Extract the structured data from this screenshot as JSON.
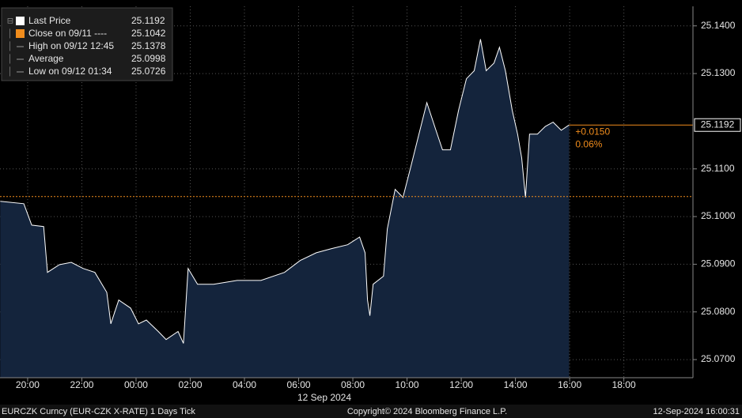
{
  "chart_data": {
    "type": "area",
    "series": [
      {
        "name": "Last Price",
        "color": "#ffffff",
        "fill": "#14243c",
        "x": [
          -5.01,
          -4.14,
          -3.85,
          -3.41,
          -3.27,
          -2.83,
          -2.39,
          -1.95,
          -1.52,
          -1.08,
          -0.93,
          -0.64,
          -0.2,
          0.09,
          0.38,
          0.82,
          1.11,
          1.55,
          1.75,
          1.92,
          2.27,
          2.86,
          3.73,
          4.61,
          5.48,
          6.06,
          6.65,
          7.23,
          7.81,
          8.25,
          8.45,
          8.54,
          8.63,
          8.75,
          9.13,
          9.27,
          9.56,
          9.85,
          10.15,
          10.44,
          10.73,
          11.02,
          11.31,
          11.6,
          11.9,
          12.19,
          12.48,
          12.71,
          12.92,
          13.21,
          13.41,
          13.63,
          13.88,
          14.08,
          14.23,
          14.37,
          14.52,
          14.81,
          15.1,
          15.39,
          15.69,
          15.98
        ],
        "values": [
          25.1032,
          25.1027,
          25.0982,
          25.0979,
          25.0883,
          25.0899,
          25.0904,
          25.0891,
          25.0883,
          25.0841,
          25.0775,
          25.0825,
          25.0808,
          25.0775,
          25.0783,
          25.0759,
          25.0742,
          25.0759,
          25.0734,
          25.0891,
          25.0858,
          25.0858,
          25.0866,
          25.0866,
          25.0883,
          25.0908,
          25.0924,
          25.0933,
          25.0941,
          25.0957,
          25.0924,
          25.0825,
          25.0792,
          25.0858,
          25.0875,
          25.0974,
          25.1057,
          25.104,
          25.1107,
          25.1173,
          25.1239,
          25.1189,
          25.114,
          25.114,
          25.1223,
          25.1289,
          25.1306,
          25.1372,
          25.1306,
          25.1322,
          25.1355,
          25.1306,
          25.1223,
          25.1173,
          25.1123,
          25.104,
          25.1173,
          25.1173,
          25.1189,
          25.1198,
          25.1181,
          25.1192
        ]
      }
    ],
    "xlim": [
      -5.02,
      20.55
    ],
    "xticks": [
      {
        "value": -4,
        "label": "20:00"
      },
      {
        "value": -2,
        "label": "22:00"
      },
      {
        "value": 0,
        "label": "00:00"
      },
      {
        "value": 2,
        "label": "02:00"
      },
      {
        "value": 4,
        "label": "04:00"
      },
      {
        "value": 6,
        "label": "06:00"
      },
      {
        "value": 8,
        "label": "08:00"
      },
      {
        "value": 10,
        "label": "10:00"
      },
      {
        "value": 12,
        "label": "12:00"
      },
      {
        "value": 14,
        "label": "14:00"
      },
      {
        "value": 16,
        "label": "16:00"
      },
      {
        "value": 18,
        "label": "18:00"
      }
    ],
    "date_label": "12 Sep 2024",
    "ylim": [
      25.0662,
      25.1441
    ],
    "yticks": [
      {
        "value": 25.07,
        "label": "25.0700"
      },
      {
        "value": 25.08,
        "label": "25.0800"
      },
      {
        "value": 25.09,
        "label": "25.0900"
      },
      {
        "value": 25.1,
        "label": "25.1000"
      },
      {
        "value": 25.11,
        "label": "25.1100"
      },
      {
        "value": 25.13,
        "label": "25.1300"
      },
      {
        "value": 25.14,
        "label": "25.1400"
      }
    ],
    "grid": true,
    "legend": [
      {
        "label": "Last Price",
        "value": 25.1192,
        "color": "#ffffff"
      },
      {
        "label": "Close on 09/11 ----",
        "value": 25.1042,
        "color": "#f08c1c"
      },
      {
        "label": "High on 09/12 12:45",
        "value": 25.1378
      },
      {
        "label": "Average",
        "value": 25.0998
      },
      {
        "label": "Low on 09/12 01:34",
        "value": 25.0726
      }
    ],
    "last_change": [
      "+0.0150",
      "0.06%"
    ]
  },
  "footer": {
    "left": "EURCZK Curncy (EUR-CZK X-RATE) 1 Days  Tick",
    "center": "Copyright© 2024 Bloomberg Finance L.P.",
    "right": "12-Sep-2024 16:00:31"
  }
}
